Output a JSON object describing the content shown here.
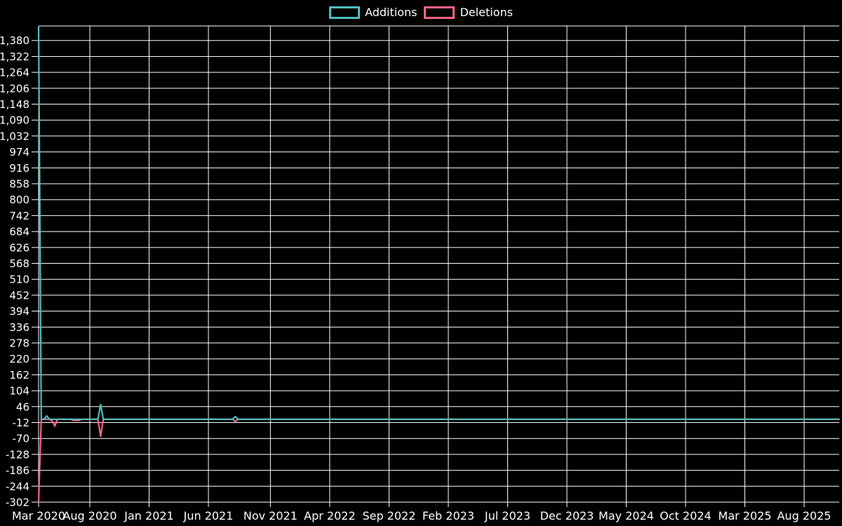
{
  "page": {
    "background_color": "#000000",
    "text_color": "#ffffff",
    "grid_color": "#ffffff"
  },
  "legend": {
    "position": "top-center",
    "items": [
      {
        "label": "Additions",
        "color": "#4bc0c0"
      },
      {
        "label": "Deletions",
        "color": "#ff6384"
      }
    ]
  },
  "chart_data": {
    "type": "line",
    "title": "",
    "xlabel": "",
    "ylabel": "",
    "grid": true,
    "x_unit": "weeks_since_first_point",
    "x_domain": [
      0,
      297
    ],
    "y_domain": [
      -302,
      1433
    ],
    "x_tick_labels": [
      "Mar 2020",
      "Aug 2020",
      "Jan 2021",
      "Jun 2021",
      "Nov 2021",
      "Apr 2022",
      "Sep 2022",
      "Feb 2023",
      "Jul 2023",
      "Dec 2023",
      "May 2024",
      "Oct 2024",
      "Mar 2025",
      "Aug 2025"
    ],
    "x_tick_weeks": [
      0,
      19,
      41,
      63,
      86,
      108,
      130,
      152,
      174,
      196,
      218,
      240,
      262,
      284
    ],
    "y_ticks": [
      1380,
      1322,
      1264,
      1206,
      1148,
      1090,
      1032,
      974,
      916,
      858,
      800,
      742,
      684,
      626,
      568,
      510,
      452,
      394,
      336,
      278,
      220,
      162,
      104,
      46,
      -12,
      -70,
      -128,
      -186,
      -244,
      -302
    ],
    "series": [
      {
        "name": "Deletions",
        "color": "#ff6384",
        "points": [
          [
            0,
            -302
          ],
          [
            1,
            0
          ],
          [
            4,
            0
          ],
          [
            5,
            -6
          ],
          [
            6,
            -25
          ],
          [
            7,
            0
          ],
          [
            12,
            0
          ],
          [
            13,
            -4
          ],
          [
            15,
            -4
          ],
          [
            16,
            0
          ],
          [
            22,
            0
          ],
          [
            23,
            -62
          ],
          [
            24,
            0
          ],
          [
            72,
            0
          ],
          [
            73,
            -8
          ],
          [
            74,
            0
          ],
          [
            297,
            0
          ]
        ]
      },
      {
        "name": "Additions",
        "color": "#4bc0c0",
        "points": [
          [
            0,
            1430
          ],
          [
            1,
            0
          ],
          [
            2,
            0
          ],
          [
            3,
            12
          ],
          [
            4,
            0
          ],
          [
            22,
            0
          ],
          [
            23,
            54
          ],
          [
            24,
            0
          ],
          [
            72,
            0
          ],
          [
            73,
            10
          ],
          [
            74,
            0
          ],
          [
            297,
            0
          ]
        ]
      }
    ]
  }
}
